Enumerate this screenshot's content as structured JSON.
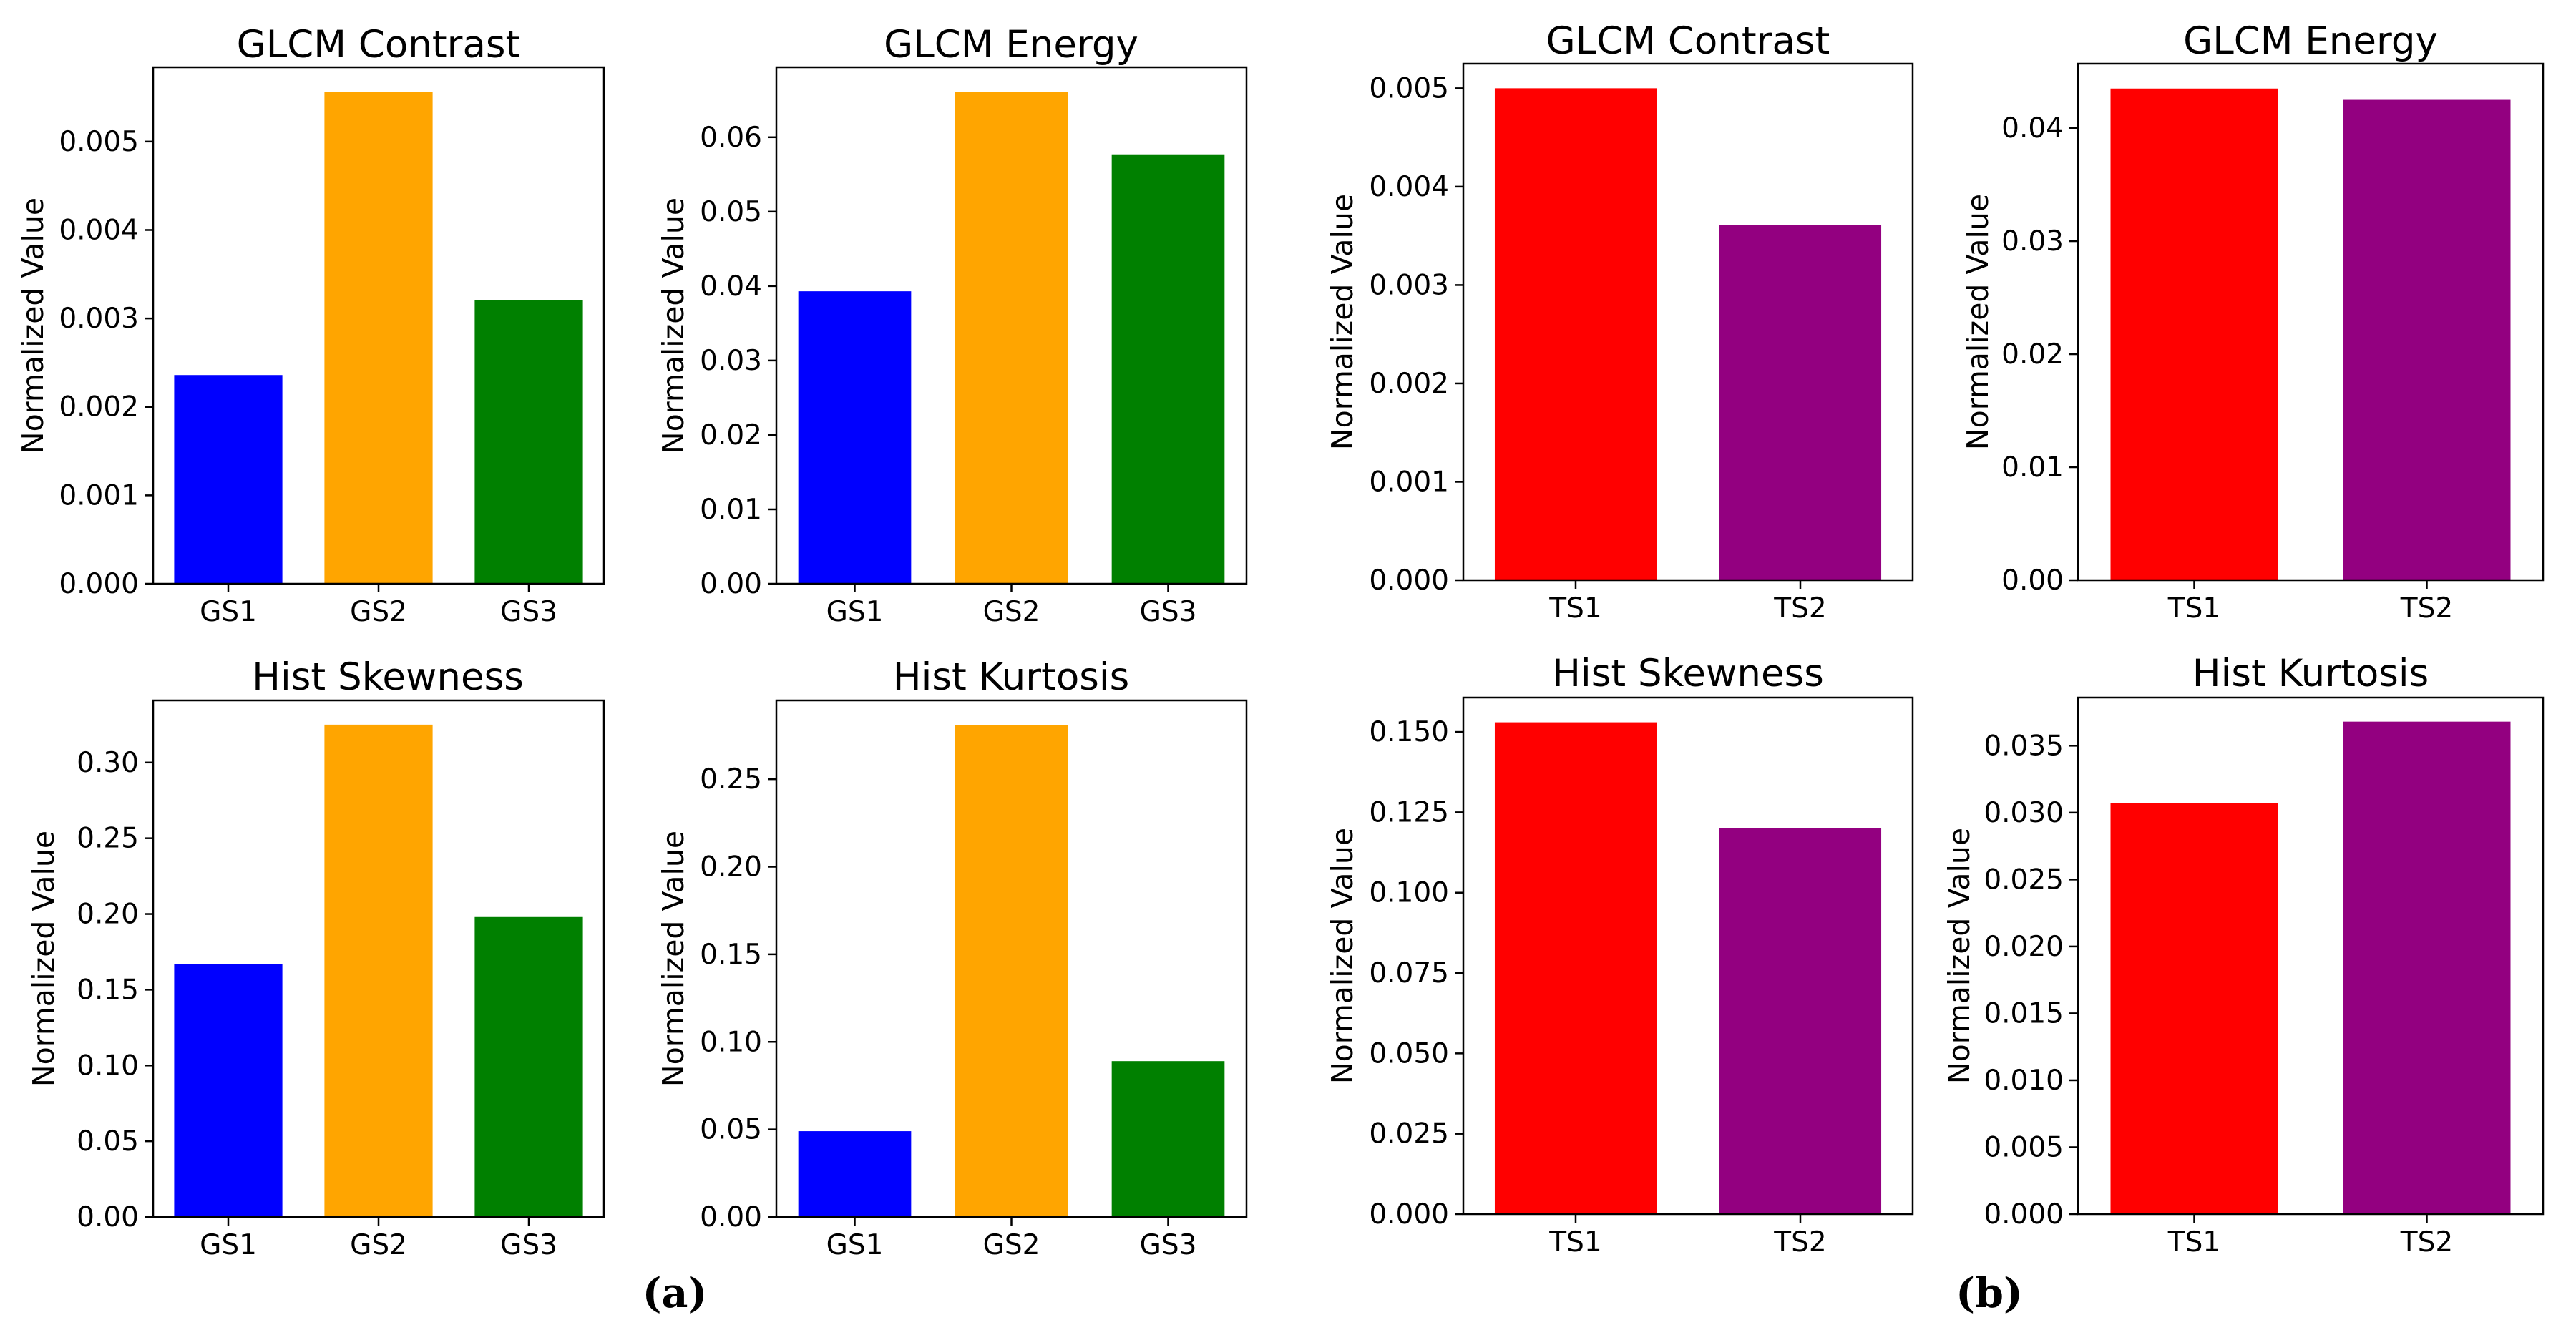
{
  "panel_labels": [
    "(a)",
    "(b)"
  ],
  "colors": {
    "GS1": "#0000ff",
    "GS2": "#ffa500",
    "GS3": "#008000",
    "TS1": "#ff0000",
    "TS2": "#930080"
  },
  "chart_data": [
    {
      "type": "bar",
      "panel": "a",
      "title": "GLCM Contrast",
      "categories": [
        "GS1",
        "GS2",
        "GS3"
      ],
      "values": [
        0.00236,
        0.00556,
        0.00321
      ],
      "ylabel": "Normalized Value",
      "xlabel": "",
      "ylim": [
        0,
        0.00584
      ],
      "yticks": [
        0.0,
        0.001,
        0.002,
        0.003,
        0.004,
        0.005
      ],
      "ytick_labels": [
        "0.000",
        "0.001",
        "0.002",
        "0.003",
        "0.004",
        "0.005"
      ],
      "grid": false
    },
    {
      "type": "bar",
      "panel": "a",
      "title": "GLCM Energy",
      "categories": [
        "GS1",
        "GS2",
        "GS3"
      ],
      "values": [
        0.0393,
        0.0661,
        0.0577
      ],
      "ylabel": "Normalized Value",
      "xlabel": "",
      "ylim": [
        0,
        0.0694
      ],
      "yticks": [
        0.0,
        0.01,
        0.02,
        0.03,
        0.04,
        0.05,
        0.06
      ],
      "ytick_labels": [
        "0.00",
        "0.01",
        "0.02",
        "0.03",
        "0.04",
        "0.05",
        "0.06"
      ],
      "grid": false
    },
    {
      "type": "bar",
      "panel": "b",
      "title": "GLCM Contrast",
      "categories": [
        "TS1",
        "TS2"
      ],
      "values": [
        0.005,
        0.00361
      ],
      "ylabel": "Normalized Value",
      "xlabel": "",
      "ylim": [
        0,
        0.00525
      ],
      "yticks": [
        0.0,
        0.001,
        0.002,
        0.003,
        0.004,
        0.005
      ],
      "ytick_labels": [
        "0.000",
        "0.001",
        "0.002",
        "0.003",
        "0.004",
        "0.005"
      ],
      "grid": false
    },
    {
      "type": "bar",
      "panel": "b",
      "title": "GLCM Energy",
      "categories": [
        "TS1",
        "TS2"
      ],
      "values": [
        0.0435,
        0.0425
      ],
      "ylabel": "Normalized Value",
      "xlabel": "",
      "ylim": [
        0,
        0.0457
      ],
      "yticks": [
        0.0,
        0.01,
        0.02,
        0.03,
        0.04
      ],
      "ytick_labels": [
        "0.00",
        "0.01",
        "0.02",
        "0.03",
        "0.04"
      ],
      "grid": false
    },
    {
      "type": "bar",
      "panel": "a",
      "title": "Hist Skewness",
      "categories": [
        "GS1",
        "GS2",
        "GS3"
      ],
      "values": [
        0.167,
        0.325,
        0.198
      ],
      "ylabel": "Normalized Value",
      "xlabel": "",
      "ylim": [
        0,
        0.341
      ],
      "yticks": [
        0.0,
        0.05,
        0.1,
        0.15,
        0.2,
        0.25,
        0.3
      ],
      "ytick_labels": [
        "0.00",
        "0.05",
        "0.10",
        "0.15",
        "0.20",
        "0.25",
        "0.30"
      ],
      "grid": false
    },
    {
      "type": "bar",
      "panel": "a",
      "title": "Hist Kurtosis",
      "categories": [
        "GS1",
        "GS2",
        "GS3"
      ],
      "values": [
        0.049,
        0.281,
        0.089
      ],
      "ylabel": "Normalized Value",
      "xlabel": "",
      "ylim": [
        0,
        0.295
      ],
      "yticks": [
        0.0,
        0.05,
        0.1,
        0.15,
        0.2,
        0.25
      ],
      "ytick_labels": [
        "0.00",
        "0.05",
        "0.10",
        "0.15",
        "0.20",
        "0.25"
      ],
      "grid": false
    },
    {
      "type": "bar",
      "panel": "b",
      "title": "Hist Skewness",
      "categories": [
        "TS1",
        "TS2"
      ],
      "values": [
        0.153,
        0.12
      ],
      "ylabel": "Normalized Value",
      "xlabel": "",
      "ylim": [
        0,
        0.1607
      ],
      "yticks": [
        0.0,
        0.025,
        0.05,
        0.075,
        0.1,
        0.125,
        0.15
      ],
      "ytick_labels": [
        "0.000",
        "0.025",
        "0.050",
        "0.075",
        "0.100",
        "0.125",
        "0.150"
      ],
      "grid": false
    },
    {
      "type": "bar",
      "panel": "b",
      "title": "Hist Kurtosis",
      "categories": [
        "TS1",
        "TS2"
      ],
      "values": [
        0.0307,
        0.0368
      ],
      "ylabel": "Normalized Value",
      "xlabel": "",
      "ylim": [
        0,
        0.0386
      ],
      "yticks": [
        0.0,
        0.005,
        0.01,
        0.015,
        0.02,
        0.025,
        0.03,
        0.035
      ],
      "ytick_labels": [
        "0.000",
        "0.005",
        "0.010",
        "0.015",
        "0.020",
        "0.025",
        "0.030",
        "0.035"
      ],
      "grid": false
    }
  ]
}
